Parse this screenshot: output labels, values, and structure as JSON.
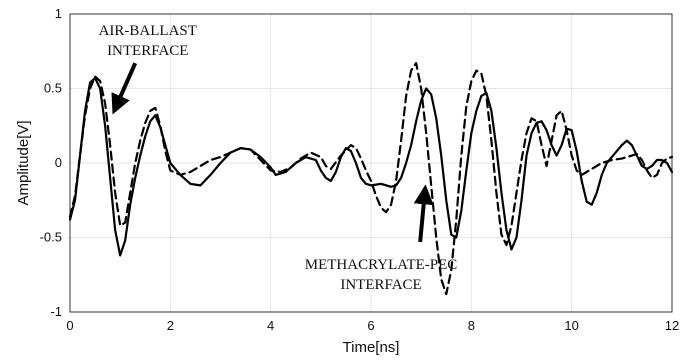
{
  "chart_data": {
    "type": "line",
    "title": "",
    "xlabel": "Time[ns]",
    "ylabel": "Amplitude[V]",
    "xlim": [
      0,
      12
    ],
    "ylim": [
      -1,
      1
    ],
    "x_ticks": [
      0,
      2,
      4,
      6,
      8,
      10,
      12
    ],
    "y_ticks": [
      -1,
      -0.5,
      0,
      0.5,
      1
    ],
    "x_tick_labels": [
      "0",
      "2",
      "4",
      "6",
      "8",
      "10",
      "12"
    ],
    "y_tick_labels": [
      "-1",
      "-0.5",
      "0",
      "0.5",
      "1"
    ],
    "grid": true,
    "legend": "none",
    "series": [
      {
        "style": "solid",
        "color": "#000000",
        "points": [
          [
            0.0,
            -0.38
          ],
          [
            0.1,
            -0.25
          ],
          [
            0.2,
            0.05
          ],
          [
            0.3,
            0.35
          ],
          [
            0.4,
            0.54
          ],
          [
            0.5,
            0.57
          ],
          [
            0.6,
            0.5
          ],
          [
            0.7,
            0.25
          ],
          [
            0.8,
            -0.1
          ],
          [
            0.9,
            -0.45
          ],
          [
            1.0,
            -0.62
          ],
          [
            1.1,
            -0.52
          ],
          [
            1.2,
            -0.28
          ],
          [
            1.3,
            -0.1
          ],
          [
            1.4,
            0.05
          ],
          [
            1.5,
            0.18
          ],
          [
            1.6,
            0.28
          ],
          [
            1.7,
            0.32
          ],
          [
            1.8,
            0.24
          ],
          [
            1.9,
            0.12
          ],
          [
            2.0,
            0.0
          ],
          [
            2.2,
            -0.08
          ],
          [
            2.4,
            -0.14
          ],
          [
            2.6,
            -0.15
          ],
          [
            2.8,
            -0.08
          ],
          [
            3.0,
            0.0
          ],
          [
            3.2,
            0.07
          ],
          [
            3.4,
            0.1
          ],
          [
            3.6,
            0.09
          ],
          [
            3.8,
            0.04
          ],
          [
            4.0,
            -0.03
          ],
          [
            4.1,
            -0.08
          ],
          [
            4.3,
            -0.06
          ],
          [
            4.5,
            0.0
          ],
          [
            4.7,
            0.04
          ],
          [
            4.9,
            0.02
          ],
          [
            5.0,
            -0.05
          ],
          [
            5.1,
            -0.1
          ],
          [
            5.2,
            -0.12
          ],
          [
            5.3,
            -0.06
          ],
          [
            5.4,
            0.04
          ],
          [
            5.5,
            0.1
          ],
          [
            5.6,
            0.08
          ],
          [
            5.7,
            0.0
          ],
          [
            5.8,
            -0.1
          ],
          [
            5.9,
            -0.14
          ],
          [
            6.0,
            -0.15
          ],
          [
            6.2,
            -0.14
          ],
          [
            6.4,
            -0.16
          ],
          [
            6.5,
            -0.15
          ],
          [
            6.6,
            -0.1
          ],
          [
            6.7,
            0.0
          ],
          [
            6.8,
            0.12
          ],
          [
            6.9,
            0.28
          ],
          [
            7.0,
            0.42
          ],
          [
            7.1,
            0.5
          ],
          [
            7.2,
            0.46
          ],
          [
            7.3,
            0.3
          ],
          [
            7.4,
            0.05
          ],
          [
            7.5,
            -0.25
          ],
          [
            7.6,
            -0.48
          ],
          [
            7.7,
            -0.5
          ],
          [
            7.8,
            -0.32
          ],
          [
            7.9,
            -0.05
          ],
          [
            8.0,
            0.2
          ],
          [
            8.1,
            0.35
          ],
          [
            8.2,
            0.45
          ],
          [
            8.3,
            0.47
          ],
          [
            8.4,
            0.35
          ],
          [
            8.5,
            0.1
          ],
          [
            8.6,
            -0.2
          ],
          [
            8.7,
            -0.45
          ],
          [
            8.8,
            -0.58
          ],
          [
            8.9,
            -0.5
          ],
          [
            9.0,
            -0.25
          ],
          [
            9.1,
            0.05
          ],
          [
            9.2,
            0.2
          ],
          [
            9.3,
            0.27
          ],
          [
            9.4,
            0.28
          ],
          [
            9.5,
            0.22
          ],
          [
            9.6,
            0.12
          ],
          [
            9.7,
            0.05
          ],
          [
            9.8,
            0.12
          ],
          [
            9.9,
            0.23
          ],
          [
            10.0,
            0.22
          ],
          [
            10.1,
            0.08
          ],
          [
            10.2,
            -0.12
          ],
          [
            10.3,
            -0.26
          ],
          [
            10.4,
            -0.28
          ],
          [
            10.5,
            -0.2
          ],
          [
            10.6,
            -0.08
          ],
          [
            10.7,
            0.0
          ],
          [
            10.8,
            0.04
          ],
          [
            10.9,
            0.08
          ],
          [
            11.0,
            0.12
          ],
          [
            11.1,
            0.15
          ],
          [
            11.2,
            0.12
          ],
          [
            11.3,
            0.05
          ],
          [
            11.4,
            -0.02
          ],
          [
            11.5,
            -0.04
          ],
          [
            11.6,
            -0.02
          ],
          [
            11.7,
            0.02
          ],
          [
            11.8,
            0.02
          ],
          [
            11.9,
            0.0
          ],
          [
            12.0,
            -0.06
          ]
        ]
      },
      {
        "style": "dashed",
        "color": "#000000",
        "points": [
          [
            0.0,
            -0.36
          ],
          [
            0.1,
            -0.22
          ],
          [
            0.2,
            0.05
          ],
          [
            0.3,
            0.32
          ],
          [
            0.4,
            0.5
          ],
          [
            0.5,
            0.58
          ],
          [
            0.6,
            0.55
          ],
          [
            0.7,
            0.4
          ],
          [
            0.8,
            0.12
          ],
          [
            0.9,
            -0.2
          ],
          [
            1.0,
            -0.42
          ],
          [
            1.1,
            -0.4
          ],
          [
            1.2,
            -0.2
          ],
          [
            1.3,
            0.0
          ],
          [
            1.4,
            0.15
          ],
          [
            1.5,
            0.27
          ],
          [
            1.6,
            0.35
          ],
          [
            1.7,
            0.37
          ],
          [
            1.8,
            0.25
          ],
          [
            1.9,
            0.08
          ],
          [
            2.0,
            -0.05
          ],
          [
            2.2,
            -0.08
          ],
          [
            2.4,
            -0.06
          ],
          [
            2.6,
            -0.02
          ],
          [
            2.8,
            0.02
          ],
          [
            3.0,
            0.04
          ],
          [
            3.2,
            0.07
          ],
          [
            3.4,
            0.1
          ],
          [
            3.6,
            0.09
          ],
          [
            3.8,
            0.02
          ],
          [
            4.0,
            -0.05
          ],
          [
            4.2,
            -0.06
          ],
          [
            4.4,
            -0.03
          ],
          [
            4.6,
            0.03
          ],
          [
            4.8,
            0.07
          ],
          [
            5.0,
            0.04
          ],
          [
            5.1,
            -0.02
          ],
          [
            5.2,
            -0.04
          ],
          [
            5.4,
            0.05
          ],
          [
            5.6,
            0.12
          ],
          [
            5.7,
            0.1
          ],
          [
            5.8,
            0.03
          ],
          [
            5.9,
            -0.05
          ],
          [
            6.0,
            -0.12
          ],
          [
            6.1,
            -0.22
          ],
          [
            6.2,
            -0.3
          ],
          [
            6.3,
            -0.33
          ],
          [
            6.4,
            -0.28
          ],
          [
            6.5,
            -0.12
          ],
          [
            6.6,
            0.15
          ],
          [
            6.7,
            0.45
          ],
          [
            6.8,
            0.62
          ],
          [
            6.9,
            0.67
          ],
          [
            7.0,
            0.5
          ],
          [
            7.1,
            0.2
          ],
          [
            7.2,
            -0.15
          ],
          [
            7.3,
            -0.5
          ],
          [
            7.4,
            -0.78
          ],
          [
            7.5,
            -0.88
          ],
          [
            7.6,
            -0.72
          ],
          [
            7.7,
            -0.38
          ],
          [
            7.8,
            0.05
          ],
          [
            7.9,
            0.38
          ],
          [
            8.0,
            0.55
          ],
          [
            8.1,
            0.62
          ],
          [
            8.2,
            0.6
          ],
          [
            8.3,
            0.45
          ],
          [
            8.4,
            0.15
          ],
          [
            8.5,
            -0.2
          ],
          [
            8.6,
            -0.48
          ],
          [
            8.7,
            -0.55
          ],
          [
            8.8,
            -0.42
          ],
          [
            8.9,
            -0.2
          ],
          [
            9.0,
            0.02
          ],
          [
            9.1,
            0.2
          ],
          [
            9.2,
            0.3
          ],
          [
            9.3,
            0.28
          ],
          [
            9.4,
            0.12
          ],
          [
            9.5,
            -0.02
          ],
          [
            9.6,
            0.15
          ],
          [
            9.7,
            0.32
          ],
          [
            9.8,
            0.35
          ],
          [
            9.9,
            0.22
          ],
          [
            10.0,
            0.05
          ],
          [
            10.1,
            -0.05
          ],
          [
            10.2,
            -0.08
          ],
          [
            10.4,
            -0.04
          ],
          [
            10.6,
            0.0
          ],
          [
            10.8,
            0.02
          ],
          [
            11.0,
            0.03
          ],
          [
            11.2,
            0.05
          ],
          [
            11.3,
            0.06
          ],
          [
            11.4,
            0.02
          ],
          [
            11.5,
            -0.05
          ],
          [
            11.6,
            -0.1
          ],
          [
            11.7,
            -0.08
          ],
          [
            11.8,
            0.0
          ],
          [
            11.9,
            0.03
          ],
          [
            12.0,
            0.04
          ]
        ]
      }
    ],
    "annotations": [
      {
        "lines": [
          "AIR-BALLAST",
          "INTERFACE"
        ],
        "arrow_from": [
          1.3,
          0.67
        ],
        "arrow_to": [
          0.88,
          0.35
        ],
        "text_anchor": [
          1.55,
          0.86
        ]
      },
      {
        "lines": [
          "METHACRYLATE-PEC",
          "INTERFACE"
        ],
        "arrow_from": [
          6.98,
          -0.53
        ],
        "arrow_to": [
          7.08,
          -0.17
        ],
        "text_anchor": [
          6.2,
          -0.71
        ]
      }
    ]
  }
}
